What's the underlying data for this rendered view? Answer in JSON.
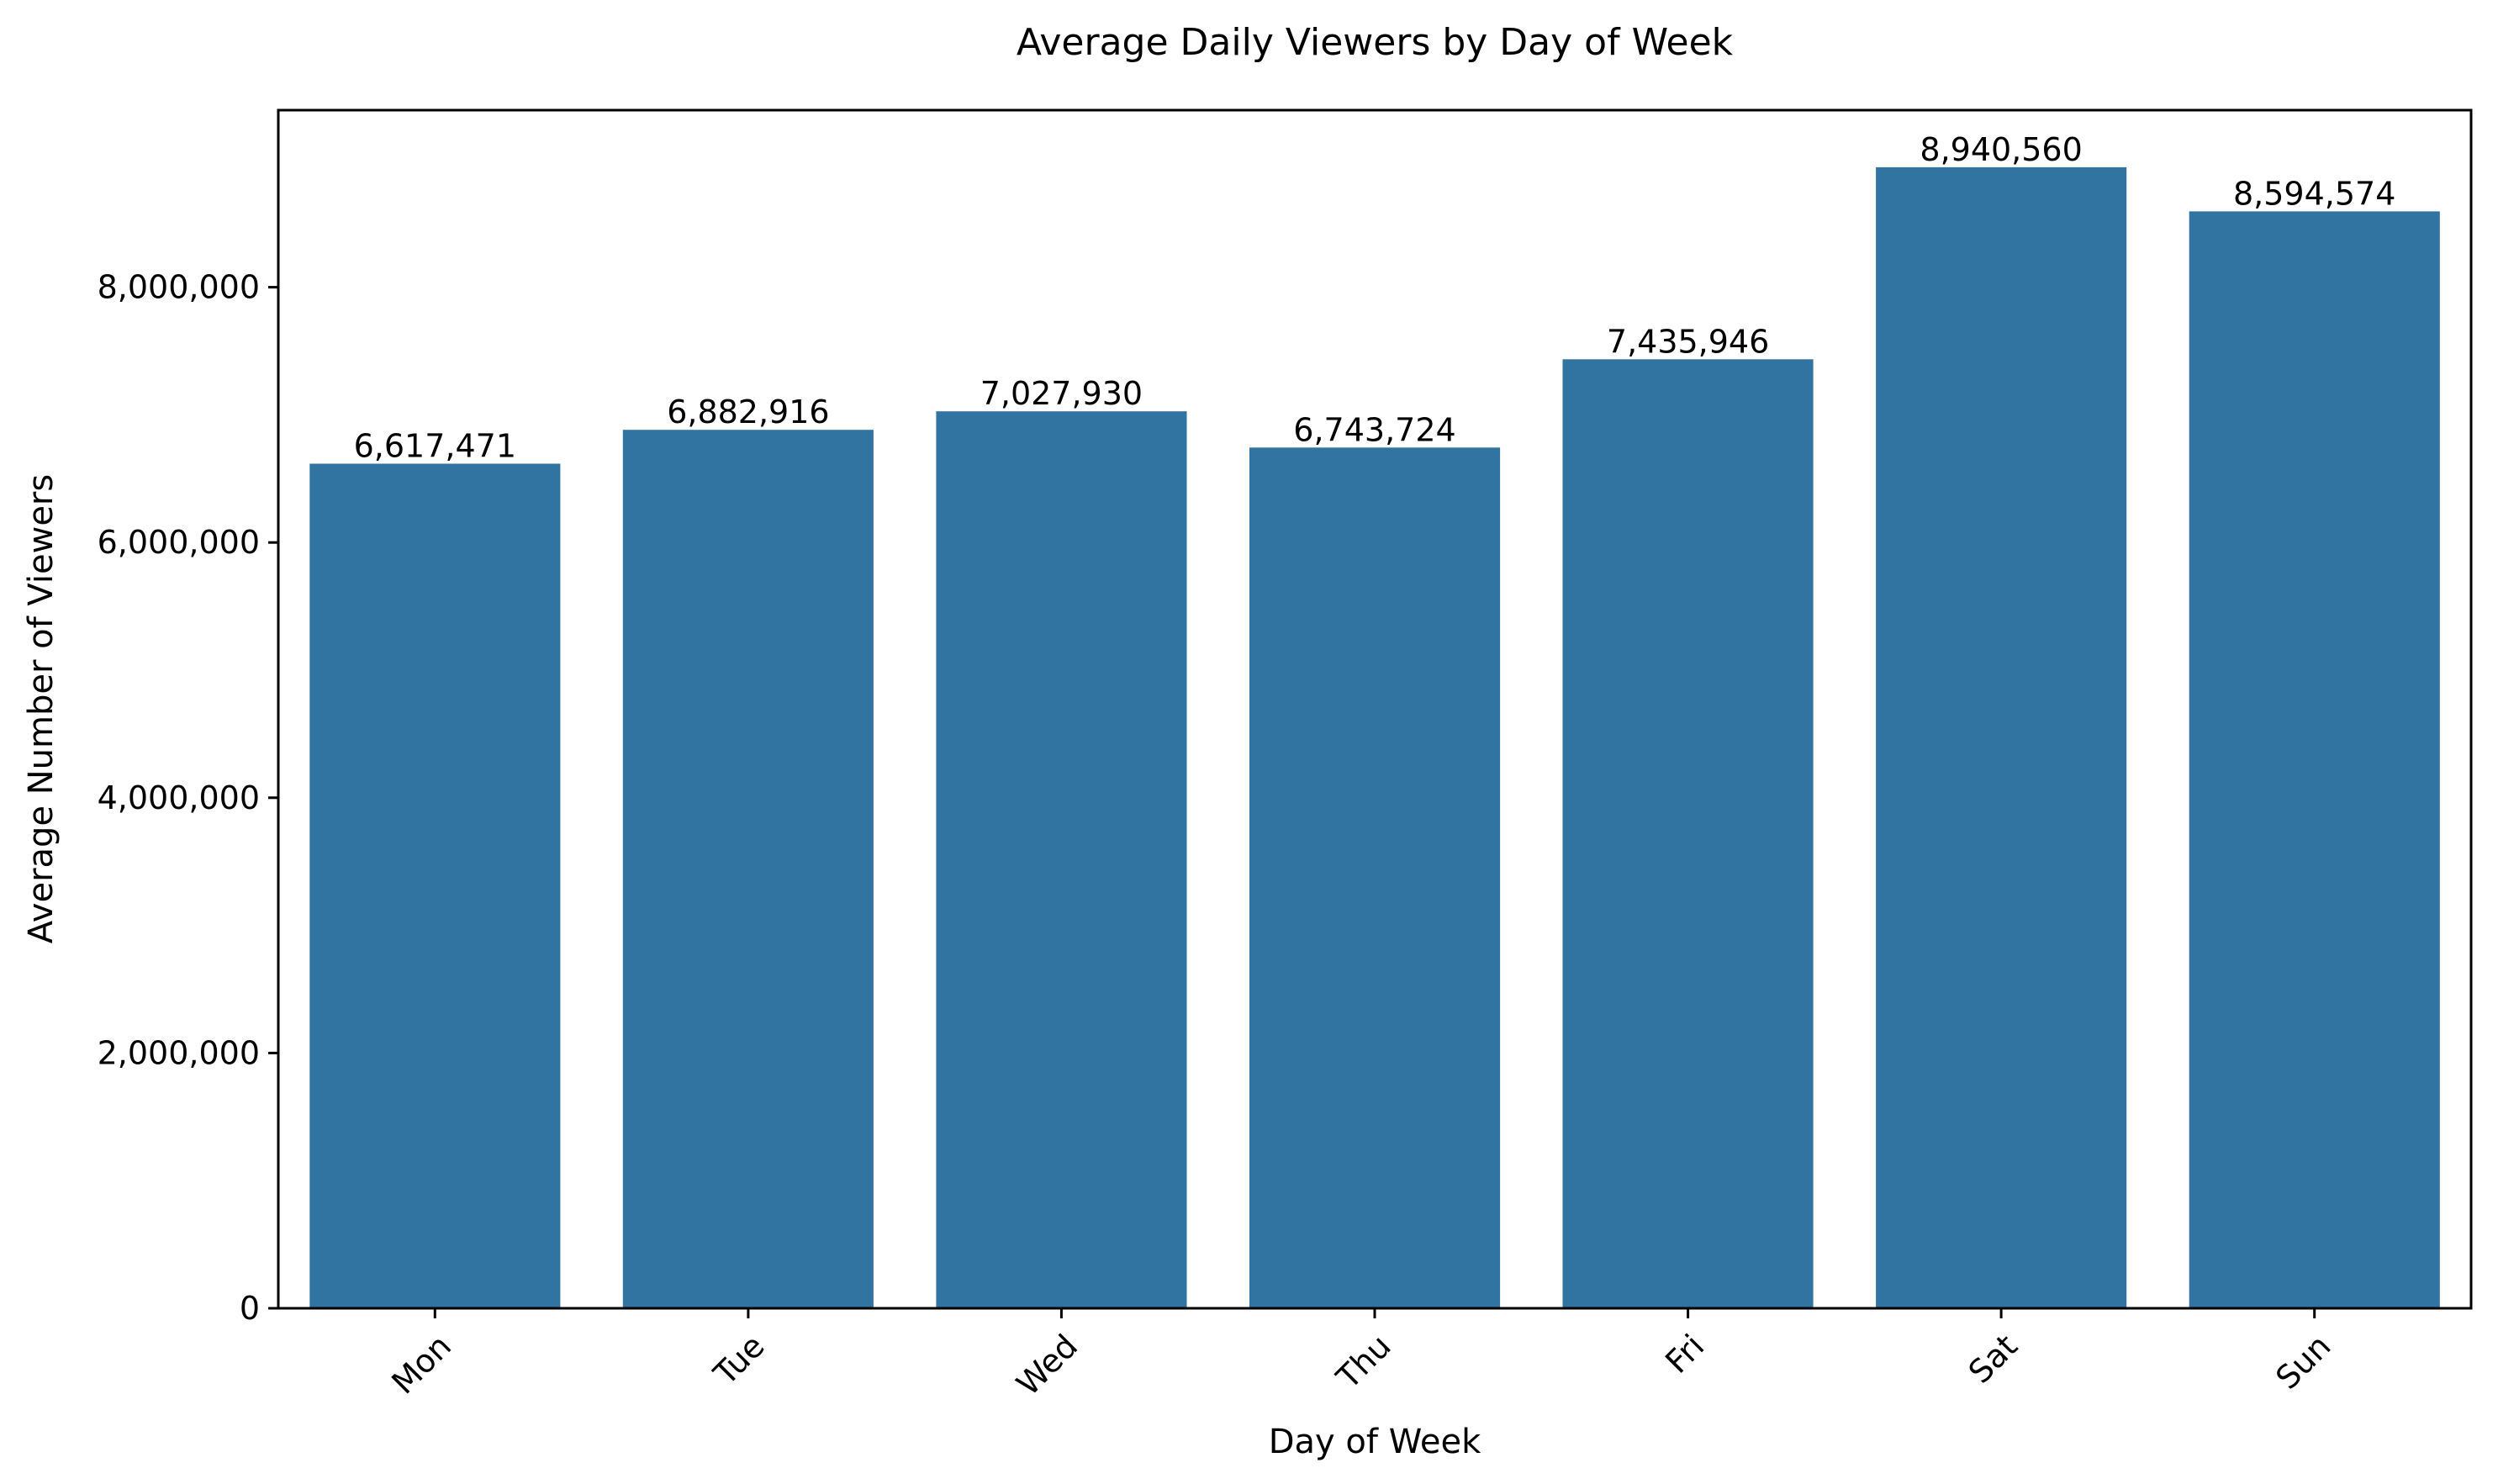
{
  "chart_data": {
    "type": "bar",
    "title": "Average Daily Viewers by Day of Week",
    "xlabel": "Day of Week",
    "ylabel": "Average Number of Viewers",
    "categories": [
      "Mon",
      "Tue",
      "Wed",
      "Thu",
      "Fri",
      "Sat",
      "Sun"
    ],
    "values": [
      6617471,
      6882916,
      7027930,
      6743724,
      7435946,
      8940560,
      8594574
    ],
    "value_labels": [
      "6,617,471",
      "6,882,916",
      "7,027,930",
      "6,743,724",
      "7,435,946",
      "8,940,560",
      "8,594,574"
    ],
    "ylim": [
      0,
      9387588
    ],
    "yticks": [
      0,
      2000000,
      4000000,
      6000000,
      8000000
    ],
    "ytick_labels": [
      "0",
      "2,000,000",
      "4,000,000",
      "6,000,000",
      "8,000,000"
    ],
    "xtick_rotation": "45 degrees",
    "grid": false,
    "legend": "none",
    "bar_color": "#3274a1",
    "axis_color": "#000000"
  }
}
